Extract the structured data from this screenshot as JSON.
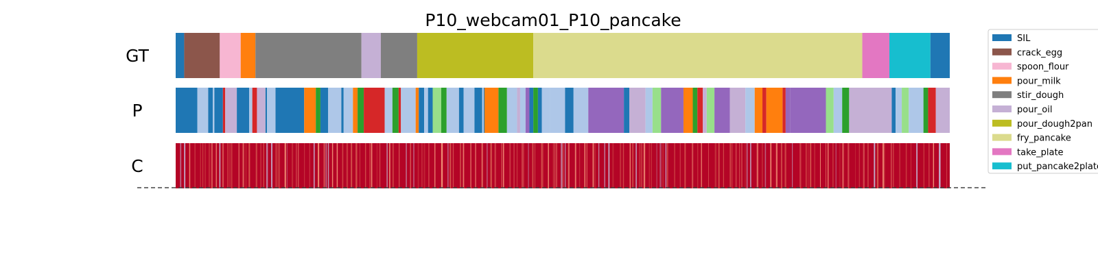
{
  "chart_data": {
    "type": "segmentation_strips",
    "title": "P10_webcam01_P10_pancake",
    "rows": [
      {
        "label": "GT",
        "kind": "segments",
        "segments": [
          {
            "class": "SIL",
            "start": 0.0,
            "end": 1.1
          },
          {
            "class": "crack_egg",
            "start": 1.1,
            "end": 5.7
          },
          {
            "class": "spoon_flour",
            "start": 5.7,
            "end": 8.4
          },
          {
            "class": "pour_milk",
            "start": 8.4,
            "end": 10.3
          },
          {
            "class": "stir_dough",
            "start": 10.3,
            "end": 24.0
          },
          {
            "class": "pour_oil",
            "start": 24.0,
            "end": 26.5
          },
          {
            "class": "stir_dough",
            "start": 26.5,
            "end": 31.2
          },
          {
            "class": "pour_dough2pan",
            "start": 31.2,
            "end": 46.2
          },
          {
            "class": "fry_pancake",
            "start": 46.2,
            "end": 88.7
          },
          {
            "class": "take_plate",
            "start": 88.7,
            "end": 92.2
          },
          {
            "class": "put_pancake2plate",
            "start": 92.2,
            "end": 97.5
          },
          {
            "class": "SIL",
            "start": 97.5,
            "end": 100.0
          }
        ]
      },
      {
        "label": "P",
        "kind": "segments",
        "segments": [
          {
            "class": "SIL",
            "start": 0.0,
            "end": 2.8
          },
          {
            "class": "pcls10",
            "start": 2.8,
            "end": 4.2
          },
          {
            "class": "SIL",
            "start": 4.2,
            "end": 4.8
          },
          {
            "class": "pcls10",
            "start": 4.8,
            "end": 5.0
          },
          {
            "class": "SIL",
            "start": 5.0,
            "end": 6.1
          },
          {
            "class": "pcls11",
            "start": 6.1,
            "end": 6.4
          },
          {
            "class": "pour_oil",
            "start": 6.4,
            "end": 7.9
          },
          {
            "class": "SIL",
            "start": 7.9,
            "end": 9.5
          },
          {
            "class": "pcls10",
            "start": 9.5,
            "end": 9.9
          },
          {
            "class": "pcls11",
            "start": 9.9,
            "end": 10.5
          },
          {
            "class": "pour_oil",
            "start": 10.5,
            "end": 11.6
          },
          {
            "class": "SIL",
            "start": 11.6,
            "end": 11.8
          },
          {
            "class": "pcls10",
            "start": 11.8,
            "end": 12.9
          },
          {
            "class": "SIL",
            "start": 12.9,
            "end": 16.6
          },
          {
            "class": "pour_milk",
            "start": 16.6,
            "end": 18.1
          },
          {
            "class": "pcls12",
            "start": 18.1,
            "end": 18.7
          },
          {
            "class": "SIL",
            "start": 18.7,
            "end": 19.7
          },
          {
            "class": "pcls10",
            "start": 19.7,
            "end": 21.4
          },
          {
            "class": "SIL",
            "start": 21.4,
            "end": 21.7
          },
          {
            "class": "pcls10",
            "start": 21.7,
            "end": 22.9
          },
          {
            "class": "pour_milk",
            "start": 22.9,
            "end": 23.5
          },
          {
            "class": "pcls12",
            "start": 23.5,
            "end": 24.3
          },
          {
            "class": "pcls11",
            "start": 24.3,
            "end": 27.0
          },
          {
            "class": "pcls10",
            "start": 27.0,
            "end": 28.0
          },
          {
            "class": "pcls12",
            "start": 28.0,
            "end": 28.8
          },
          {
            "class": "pcls11",
            "start": 28.8,
            "end": 29.1
          },
          {
            "class": "pcls10",
            "start": 29.1,
            "end": 31.0
          },
          {
            "class": "pour_milk",
            "start": 31.0,
            "end": 31.4
          },
          {
            "class": "SIL",
            "start": 31.4,
            "end": 32.1
          },
          {
            "class": "pcls10",
            "start": 32.1,
            "end": 32.6
          },
          {
            "class": "SIL",
            "start": 32.6,
            "end": 33.2
          },
          {
            "class": "pcls13",
            "start": 33.2,
            "end": 34.3
          },
          {
            "class": "pcls12",
            "start": 34.3,
            "end": 35.0
          },
          {
            "class": "pcls10",
            "start": 35.0,
            "end": 36.6
          },
          {
            "class": "SIL",
            "start": 36.6,
            "end": 37.2
          },
          {
            "class": "pcls10",
            "start": 37.2,
            "end": 38.6
          },
          {
            "class": "SIL",
            "start": 38.6,
            "end": 39.6
          },
          {
            "class": "pcls10",
            "start": 39.6,
            "end": 39.8
          },
          {
            "class": "SIL",
            "start": 39.8,
            "end": 39.9
          },
          {
            "class": "pour_milk",
            "start": 39.9,
            "end": 41.7
          },
          {
            "class": "pcls12",
            "start": 41.7,
            "end": 42.8
          },
          {
            "class": "pcls10",
            "start": 42.8,
            "end": 44.1
          },
          {
            "class": "pour_oil",
            "start": 44.1,
            "end": 44.5
          },
          {
            "class": "pcls10",
            "start": 44.5,
            "end": 45.2
          },
          {
            "class": "pcls14",
            "start": 45.2,
            "end": 45.7
          },
          {
            "class": "SIL",
            "start": 45.7,
            "end": 46.2
          },
          {
            "class": "pcls12",
            "start": 46.2,
            "end": 46.8
          },
          {
            "class": "SIL",
            "start": 46.8,
            "end": 47.3
          },
          {
            "class": "pcls10",
            "start": 47.3,
            "end": 48.4
          },
          {
            "class": "pcls10",
            "start": 48.4,
            "end": 50.3
          },
          {
            "class": "SIL",
            "start": 50.3,
            "end": 51.4
          },
          {
            "class": "pcls10",
            "start": 51.4,
            "end": 53.3
          },
          {
            "class": "pcls14",
            "start": 53.3,
            "end": 57.9
          },
          {
            "class": "SIL",
            "start": 57.9,
            "end": 58.6
          },
          {
            "class": "pour_oil",
            "start": 58.6,
            "end": 60.7
          },
          {
            "class": "pcls10",
            "start": 60.7,
            "end": 61.6
          },
          {
            "class": "pcls13",
            "start": 61.6,
            "end": 62.7
          },
          {
            "class": "pcls14",
            "start": 62.7,
            "end": 65.6
          },
          {
            "class": "pour_milk",
            "start": 65.6,
            "end": 66.8
          },
          {
            "class": "pcls12",
            "start": 66.8,
            "end": 67.4
          },
          {
            "class": "pcls11",
            "start": 67.4,
            "end": 68.1
          },
          {
            "class": "pour_oil",
            "start": 68.1,
            "end": 68.6
          },
          {
            "class": "pcls13",
            "start": 68.6,
            "end": 69.6
          },
          {
            "class": "pcls14",
            "start": 69.6,
            "end": 71.6
          },
          {
            "class": "pour_oil",
            "start": 71.6,
            "end": 73.6
          },
          {
            "class": "pcls10",
            "start": 73.6,
            "end": 74.8
          },
          {
            "class": "pour_milk",
            "start": 74.8,
            "end": 75.8
          },
          {
            "class": "pcls11",
            "start": 75.8,
            "end": 76.3
          },
          {
            "class": "pour_milk",
            "start": 76.3,
            "end": 78.4
          },
          {
            "class": "pcls11",
            "start": 78.4,
            "end": 78.8
          },
          {
            "class": "pcls14",
            "start": 78.8,
            "end": 79.4
          },
          {
            "class": "pcls14",
            "start": 79.4,
            "end": 84.0
          },
          {
            "class": "pcls13",
            "start": 84.0,
            "end": 85.0
          },
          {
            "class": "pcls10",
            "start": 85.0,
            "end": 86.1
          },
          {
            "class": "pcls12",
            "start": 86.1,
            "end": 87.0
          },
          {
            "class": "pour_oil",
            "start": 87.0,
            "end": 92.5
          },
          {
            "class": "SIL",
            "start": 92.5,
            "end": 93.0
          },
          {
            "class": "pcls10",
            "start": 93.0,
            "end": 93.8
          },
          {
            "class": "pcls13",
            "start": 93.8,
            "end": 94.7
          },
          {
            "class": "pcls10",
            "start": 94.7,
            "end": 96.6
          },
          {
            "class": "pcls12",
            "start": 96.6,
            "end": 97.2
          },
          {
            "class": "pcls11",
            "start": 97.2,
            "end": 98.2
          },
          {
            "class": "pour_oil",
            "start": 98.2,
            "end": 100.0
          }
        ]
      },
      {
        "label": "C",
        "kind": "confidence",
        "base_color": "#b40426",
        "pale_color": "#f4987a",
        "dip_color": "#c5d6f2"
      }
    ],
    "legend": {
      "placement": "upper-right",
      "entries": [
        {
          "label": "SIL",
          "color": "#1f77b4"
        },
        {
          "label": "crack_egg",
          "color": "#8c564b"
        },
        {
          "label": "spoon_flour",
          "color": "#f7b6d2"
        },
        {
          "label": "pour_milk",
          "color": "#ff7f0e"
        },
        {
          "label": "stir_dough",
          "color": "#7f7f7f"
        },
        {
          "label": "pour_oil",
          "color": "#c5b0d5"
        },
        {
          "label": "pour_dough2pan",
          "color": "#bcbd22"
        },
        {
          "label": "fry_pancake",
          "color": "#dbdb8d"
        },
        {
          "label": "take_plate",
          "color": "#e377c2"
        },
        {
          "label": "put_pancake2plate",
          "color": "#17becf"
        }
      ]
    },
    "extra_colors": {
      "pcls10": "#aec7e8",
      "pcls11": "#d62728",
      "pcls12": "#2ca02c",
      "pcls13": "#98df8a",
      "pcls14": "#9467bd"
    },
    "dashed_line": true
  }
}
